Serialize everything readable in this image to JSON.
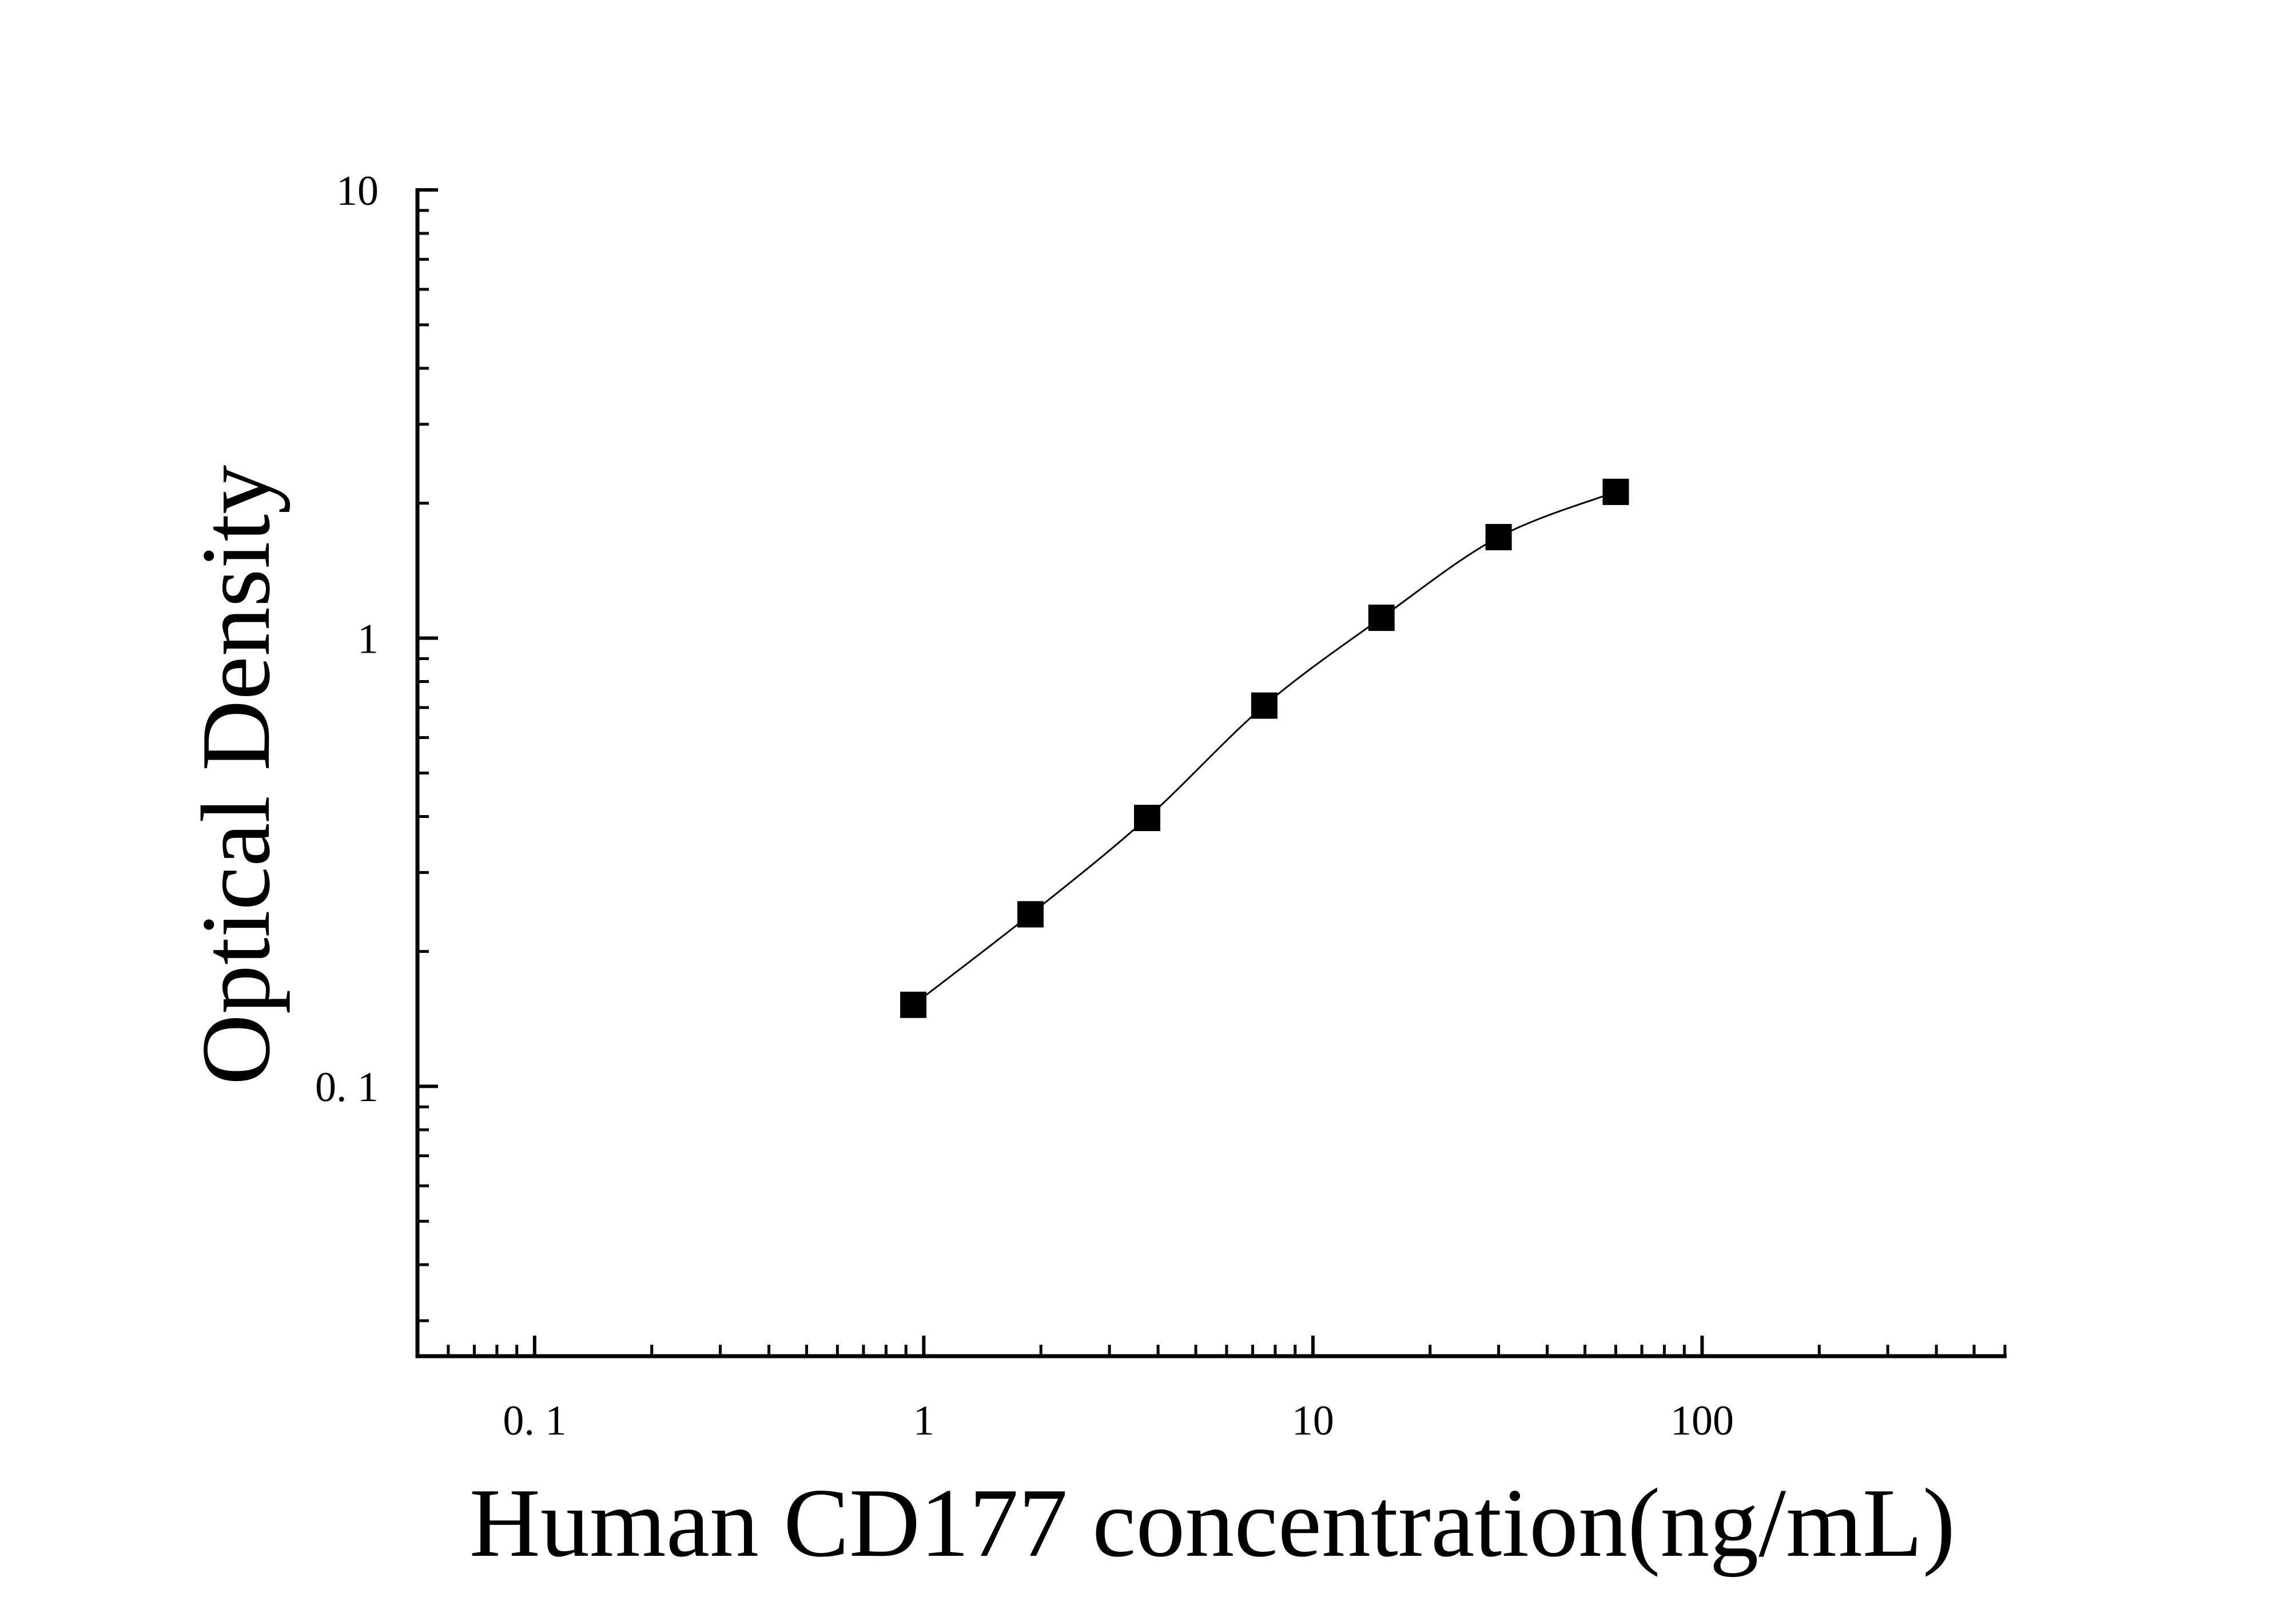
{
  "chart_data": {
    "type": "scatter",
    "x_label": "Human CD177 concentration(ng/mL)",
    "y_label": "Optical Density",
    "x": [
      0.94,
      1.88,
      3.75,
      7.5,
      15,
      30,
      60
    ],
    "values": [
      0.152,
      0.242,
      0.397,
      0.707,
      1.11,
      1.68,
      2.12
    ],
    "color": "#000000",
    "xscale": "log",
    "yscale": "log",
    "xlim": [
      0.05,
      600
    ],
    "ylim": [
      0.025,
      10
    ],
    "xticks": [
      {
        "value": 0.1,
        "label": "0. 1"
      },
      1,
      10,
      100
    ],
    "yticks": [
      {
        "value": 0.1,
        "label": "0. 1"
      },
      1,
      10
    ],
    "minor_ticks": true,
    "fit_curve": true
  }
}
